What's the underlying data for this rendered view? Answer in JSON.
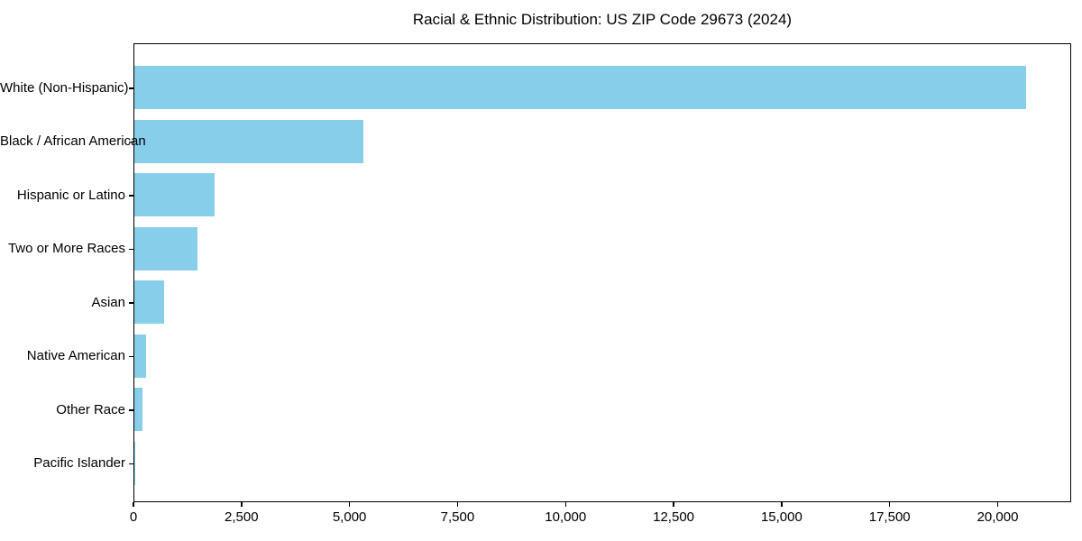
{
  "figure": {
    "title": "Racial & Ethnic Distribution: US ZIP Code 29673 (2024)"
  },
  "chart_data": {
    "type": "bar",
    "orientation": "horizontal",
    "title": "Racial & Ethnic Distribution: US ZIP Code 29673 (2024)",
    "categories": [
      "White (Non-Hispanic)",
      "Black / African American",
      "Hispanic or Latino",
      "Two or More Races",
      "Asian",
      "Native American",
      "Other Race",
      "Pacific Islander"
    ],
    "values": [
      20630,
      5310,
      1860,
      1460,
      680,
      280,
      190,
      10
    ],
    "xlabel": "",
    "ylabel": "",
    "xlim": [
      0,
      21700
    ],
    "x_ticks": [
      0,
      2500,
      5000,
      7500,
      10000,
      12500,
      15000,
      17500,
      20000
    ],
    "x_tick_labels": [
      "0",
      "2,500",
      "5,000",
      "7,500",
      "10,000",
      "12,500",
      "15,000",
      "17,500",
      "20,000"
    ],
    "bar_color": "#87CEEB",
    "axis_color": "#000000",
    "grid": false,
    "legend": false
  }
}
